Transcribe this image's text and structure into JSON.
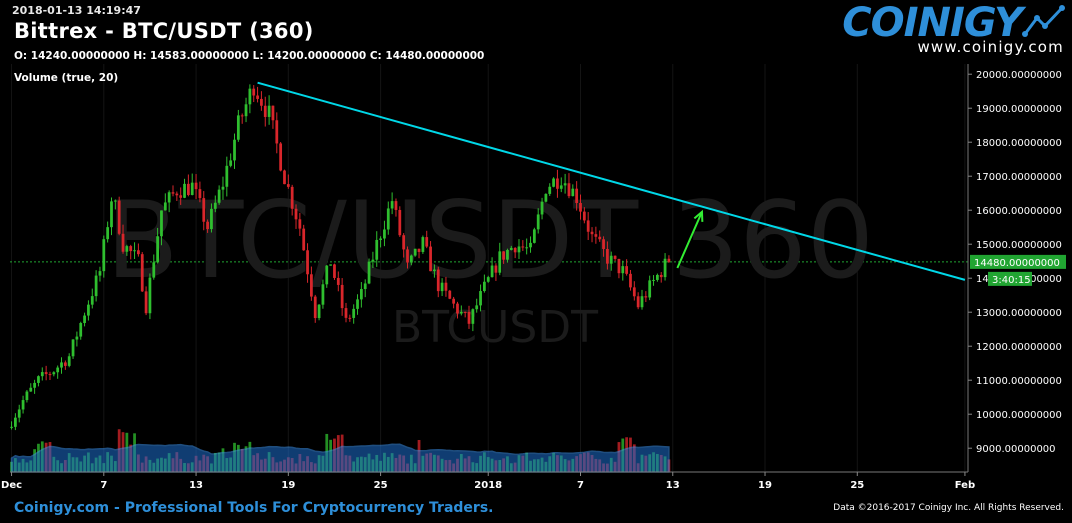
{
  "header": {
    "timestamp": "2018-01-13 14:19:47",
    "title": "Bittrex - BTC/USDT (360)",
    "ohlc": "O: 14240.00000000 H: 14583.00000000 L: 14200.00000000 C: 14480.00000000",
    "volume_label": "Volume (true, 20)"
  },
  "logo": {
    "name": "COINIGY",
    "url": "www.coinigy.com"
  },
  "watermark": {
    "big": "BTC/USDT 360",
    "small": "BTCUSDT"
  },
  "footer": {
    "left": "Coinigy.com - Professional Tools For Cryptocurrency Traders.",
    "right": "Data ©2016-2017 Coinigy Inc. All Rights Reserved."
  },
  "colors": {
    "up": "#2fbf2f",
    "down": "#d9262b",
    "trendline": "#00d8e8",
    "arrow": "#33ee33",
    "volume_area": "#1e6fcf",
    "price_tag": "#21a532"
  },
  "chart_data": {
    "type": "candlestick",
    "ylim": [
      8300,
      20300
    ],
    "y_ticks": [
      "20000.00000000",
      "19000.00000000",
      "18000.00000000",
      "17000.00000000",
      "16000.00000000",
      "15000.00000000",
      "14000.00000000",
      "13000.00000000",
      "12000.00000000",
      "11000.00000000",
      "10000.00000000",
      "9000.00000000"
    ],
    "x_ticks": [
      "Dec",
      "7",
      "13",
      "19",
      "25",
      "2018",
      "7",
      "13",
      "19",
      "25",
      "Feb"
    ],
    "x_tick_days": [
      1,
      7,
      13,
      19,
      25,
      32,
      38,
      44,
      50,
      56,
      63
    ],
    "xlim_days": [
      0.9,
      63.2
    ],
    "last_price_label": "14480.00000000",
    "countdown_label": "3:40:15",
    "last_price": 14480,
    "anchors": [
      [
        1,
        9600
      ],
      [
        2,
        10400
      ],
      [
        3,
        11000
      ],
      [
        4,
        11300
      ],
      [
        5,
        11700
      ],
      [
        6,
        13000
      ],
      [
        7,
        14200
      ],
      [
        7.8,
        16500
      ],
      [
        8.5,
        15000
      ],
      [
        9.5,
        14500
      ],
      [
        10,
        13200
      ],
      [
        11,
        16000
      ],
      [
        12,
        16600
      ],
      [
        13,
        16700
      ],
      [
        14,
        15500
      ],
      [
        15,
        16800
      ],
      [
        16,
        18500
      ],
      [
        17,
        19700
      ],
      [
        18,
        18800
      ],
      [
        19,
        17000
      ],
      [
        20,
        15500
      ],
      [
        21,
        13000
      ],
      [
        22,
        14500
      ],
      [
        23,
        12700
      ],
      [
        24,
        13500
      ],
      [
        25,
        15000
      ],
      [
        26,
        16300
      ],
      [
        27,
        14300
      ],
      [
        28,
        15000
      ],
      [
        29,
        13800
      ],
      [
        30,
        13200
      ],
      [
        31,
        12700
      ],
      [
        32,
        13700
      ],
      [
        33,
        14600
      ],
      [
        34,
        15000
      ],
      [
        35,
        14800
      ],
      [
        36,
        16700
      ],
      [
        37,
        17000
      ],
      [
        38,
        16400
      ],
      [
        39,
        15200
      ],
      [
        40,
        14600
      ],
      [
        41,
        14200
      ],
      [
        42,
        13200
      ],
      [
        43,
        13900
      ],
      [
        43.9,
        14480
      ]
    ],
    "volume_peaks": [
      [
        22,
        1600
      ],
      [
        8.5,
        1200
      ],
      [
        41,
        1100
      ],
      [
        16,
        900
      ],
      [
        3,
        1000
      ]
    ],
    "trendline": {
      "from": [
        17,
        19750
      ],
      "to": [
        63,
        13950
      ]
    },
    "arrow": {
      "from": [
        44.3,
        14300
      ],
      "to": [
        45.9,
        15950
      ]
    }
  }
}
